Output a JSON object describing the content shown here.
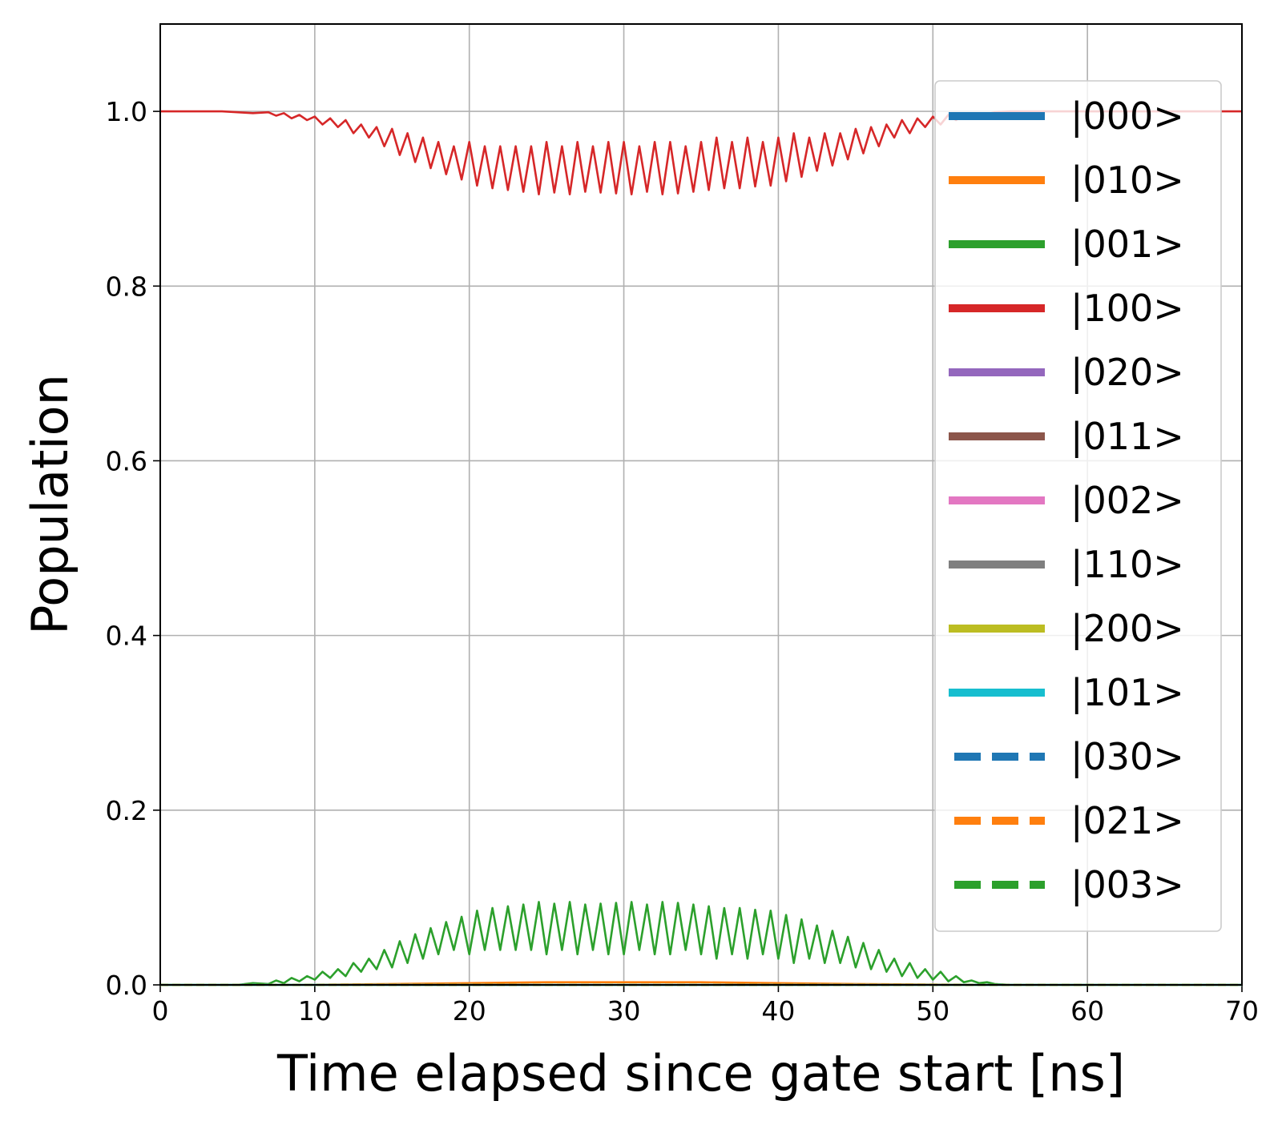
{
  "chart_data": {
    "type": "line",
    "title": "",
    "xlabel": "Time elapsed since gate start [ns]",
    "ylabel": "Population",
    "xlim": [
      0,
      70
    ],
    "ylim": [
      0,
      1.1
    ],
    "xticks": [
      0,
      10,
      20,
      30,
      40,
      50,
      60,
      70
    ],
    "xtick_labels": [
      "0",
      "10",
      "20",
      "30",
      "40",
      "50",
      "60",
      "70"
    ],
    "yticks": [
      0.0,
      0.2,
      0.4,
      0.6,
      0.8,
      1.0
    ],
    "ytick_labels": [
      "0.0",
      "0.2",
      "0.4",
      "0.6",
      "0.8",
      "1.0"
    ],
    "grid": true,
    "legend_position": "upper right",
    "series": [
      {
        "name": "|000>",
        "color": "#1f77b4",
        "dash": "solid",
        "x": [
          0,
          70
        ],
        "y": [
          0,
          0
        ]
      },
      {
        "name": "|010>",
        "color": "#ff7f0e",
        "dash": "solid",
        "x": [
          0,
          10,
          15,
          20,
          25,
          30,
          35,
          40,
          45,
          50,
          55,
          70
        ],
        "y": [
          0,
          0.0002,
          0.001,
          0.002,
          0.003,
          0.003,
          0.003,
          0.002,
          0.001,
          0.0005,
          0,
          0
        ]
      },
      {
        "name": "|001>",
        "color": "#2ca02c",
        "dash": "solid",
        "x": [
          0,
          5.0,
          6.0,
          7.0,
          7.5,
          8.0,
          8.5,
          9.0,
          9.5,
          10.0,
          10.5,
          11.0,
          11.5,
          12.0,
          12.5,
          13.0,
          13.5,
          14.0,
          14.5,
          15.0,
          15.5,
          16.0,
          16.5,
          17.0,
          17.5,
          18.0,
          18.5,
          19.0,
          19.5,
          20.0,
          20.5,
          21.0,
          21.5,
          22.0,
          22.5,
          23.0,
          23.5,
          24.0,
          24.5,
          25.0,
          25.5,
          26.0,
          26.5,
          27.0,
          27.5,
          28.0,
          28.5,
          29.0,
          29.5,
          30.0,
          30.5,
          31.0,
          31.5,
          32.0,
          32.5,
          33.0,
          33.5,
          34.0,
          34.5,
          35.0,
          35.5,
          36.0,
          36.5,
          37.0,
          37.5,
          38.0,
          38.5,
          39.0,
          39.5,
          40.0,
          40.5,
          41.0,
          41.5,
          42.0,
          42.5,
          43.0,
          43.5,
          44.0,
          44.5,
          45.0,
          45.5,
          46.0,
          46.5,
          47.0,
          47.5,
          48.0,
          48.5,
          49.0,
          49.5,
          50.0,
          50.5,
          51.0,
          51.5,
          52.0,
          52.5,
          53.0,
          53.5,
          54.0,
          55.0,
          70
        ],
        "y": [
          0,
          0.0,
          0.002,
          0.001,
          0.005,
          0.002,
          0.008,
          0.004,
          0.01,
          0.006,
          0.015,
          0.008,
          0.018,
          0.01,
          0.025,
          0.015,
          0.03,
          0.018,
          0.04,
          0.02,
          0.05,
          0.025,
          0.058,
          0.03,
          0.065,
          0.035,
          0.072,
          0.04,
          0.078,
          0.035,
          0.085,
          0.04,
          0.088,
          0.04,
          0.09,
          0.04,
          0.092,
          0.04,
          0.095,
          0.035,
          0.093,
          0.04,
          0.095,
          0.035,
          0.092,
          0.04,
          0.093,
          0.035,
          0.094,
          0.035,
          0.095,
          0.04,
          0.092,
          0.035,
          0.095,
          0.035,
          0.094,
          0.04,
          0.092,
          0.035,
          0.09,
          0.03,
          0.088,
          0.035,
          0.088,
          0.03,
          0.086,
          0.035,
          0.085,
          0.03,
          0.08,
          0.025,
          0.075,
          0.03,
          0.068,
          0.025,
          0.062,
          0.025,
          0.055,
          0.02,
          0.048,
          0.018,
          0.04,
          0.015,
          0.03,
          0.01,
          0.025,
          0.008,
          0.018,
          0.006,
          0.015,
          0.004,
          0.01,
          0.003,
          0.005,
          0.002,
          0.003,
          0.001,
          0.0,
          0
        ]
      },
      {
        "name": "|100>",
        "color": "#d62728",
        "dash": "solid",
        "x": [
          0,
          4.0,
          6.0,
          7.0,
          7.5,
          8.0,
          8.5,
          9.0,
          9.5,
          10.0,
          10.5,
          11.0,
          11.5,
          12.0,
          12.5,
          13.0,
          13.5,
          14.0,
          14.5,
          15.0,
          15.5,
          16.0,
          16.5,
          17.0,
          17.5,
          18.0,
          18.5,
          19.0,
          19.5,
          20.0,
          20.5,
          21.0,
          21.5,
          22.0,
          22.5,
          23.0,
          23.5,
          24.0,
          24.5,
          25.0,
          25.5,
          26.0,
          26.5,
          27.0,
          27.5,
          28.0,
          28.5,
          29.0,
          29.5,
          30.0,
          30.5,
          31.0,
          31.5,
          32.0,
          32.5,
          33.0,
          33.5,
          34.0,
          34.5,
          35.0,
          35.5,
          36.0,
          36.5,
          37.0,
          37.5,
          38.0,
          38.5,
          39.0,
          39.5,
          40.0,
          40.5,
          41.0,
          41.5,
          42.0,
          42.5,
          43.0,
          43.5,
          44.0,
          44.5,
          45.0,
          45.5,
          46.0,
          46.5,
          47.0,
          47.5,
          48.0,
          48.5,
          49.0,
          49.5,
          50.0,
          50.5,
          51.0,
          51.5,
          52.0,
          52.5,
          53.0,
          53.5,
          54.0,
          55.0,
          70
        ],
        "y": [
          1.0,
          1.0,
          0.998,
          0.999,
          0.995,
          0.998,
          0.992,
          0.996,
          0.99,
          0.994,
          0.985,
          0.992,
          0.982,
          0.99,
          0.975,
          0.985,
          0.97,
          0.982,
          0.96,
          0.98,
          0.95,
          0.975,
          0.942,
          0.97,
          0.935,
          0.965,
          0.928,
          0.96,
          0.922,
          0.965,
          0.915,
          0.96,
          0.912,
          0.96,
          0.91,
          0.96,
          0.908,
          0.96,
          0.905,
          0.965,
          0.907,
          0.96,
          0.905,
          0.965,
          0.908,
          0.96,
          0.907,
          0.965,
          0.906,
          0.965,
          0.905,
          0.96,
          0.908,
          0.965,
          0.905,
          0.965,
          0.906,
          0.96,
          0.908,
          0.965,
          0.91,
          0.97,
          0.912,
          0.965,
          0.912,
          0.97,
          0.914,
          0.965,
          0.915,
          0.97,
          0.92,
          0.975,
          0.925,
          0.97,
          0.932,
          0.975,
          0.938,
          0.975,
          0.945,
          0.98,
          0.952,
          0.982,
          0.96,
          0.985,
          0.97,
          0.99,
          0.975,
          0.992,
          0.982,
          0.994,
          0.985,
          0.996,
          0.99,
          0.997,
          0.995,
          0.998,
          0.997,
          0.999,
          1.0,
          1.0
        ]
      },
      {
        "name": "|020>",
        "color": "#9467bd",
        "dash": "solid",
        "x": [
          0,
          70
        ],
        "y": [
          0,
          0
        ]
      },
      {
        "name": "|011>",
        "color": "#8c564b",
        "dash": "solid",
        "x": [
          0,
          70
        ],
        "y": [
          0,
          0
        ]
      },
      {
        "name": "|002>",
        "color": "#e377c2",
        "dash": "solid",
        "x": [
          0,
          70
        ],
        "y": [
          0,
          0
        ]
      },
      {
        "name": "|110>",
        "color": "#7f7f7f",
        "dash": "solid",
        "x": [
          0,
          70
        ],
        "y": [
          0,
          0
        ]
      },
      {
        "name": "|200>",
        "color": "#bcbd22",
        "dash": "solid",
        "x": [
          0,
          70
        ],
        "y": [
          0,
          0
        ]
      },
      {
        "name": "|101>",
        "color": "#17becf",
        "dash": "solid",
        "x": [
          0,
          70
        ],
        "y": [
          0,
          0
        ]
      },
      {
        "name": "|030>",
        "color": "#1f77b4",
        "dash": "dashed",
        "x": [
          0,
          70
        ],
        "y": [
          0,
          0
        ]
      },
      {
        "name": "|021>",
        "color": "#ff7f0e",
        "dash": "dashed",
        "x": [
          0,
          70
        ],
        "y": [
          0,
          0
        ]
      },
      {
        "name": "|003>",
        "color": "#2ca02c",
        "dash": "dashed",
        "x": [
          0,
          70
        ],
        "y": [
          0,
          0
        ]
      }
    ]
  }
}
